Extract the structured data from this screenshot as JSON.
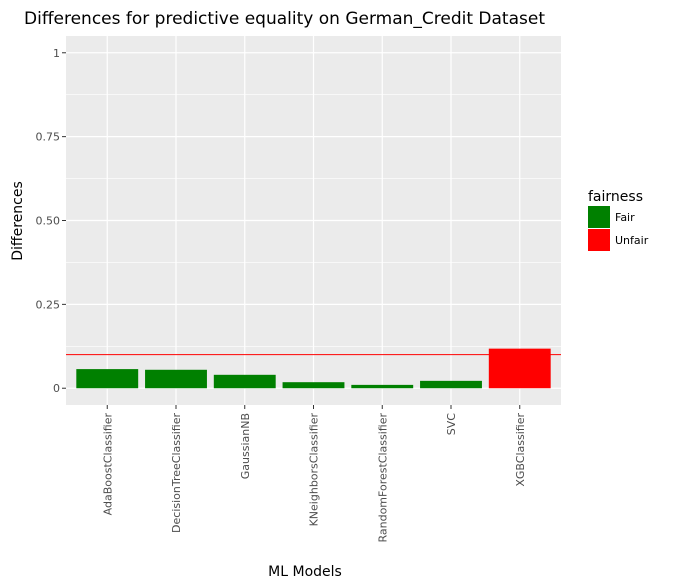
{
  "chart_data": {
    "type": "bar",
    "title": "Differences for predictive equality on German_Credit Dataset",
    "xlabel": "ML Models",
    "ylabel": "Differences",
    "categories": [
      "AdaBoostClassifier",
      "DecisionTreeClassifier",
      "GaussianNB",
      "KNeighborsClassifier",
      "RandomForestClassifier",
      "SVC",
      "XGBClassifier"
    ],
    "values": [
      0.057,
      0.055,
      0.04,
      0.018,
      0.01,
      0.022,
      0.118
    ],
    "fairness": [
      "Fair",
      "Fair",
      "Fair",
      "Fair",
      "Fair",
      "Fair",
      "Unfair"
    ],
    "ylim": [
      -0.05,
      1.05
    ],
    "yticks": [
      0,
      0.25,
      0.5,
      0.75,
      1
    ],
    "ytick_labels": [
      "0",
      "0.25",
      "0.50",
      "0.75",
      "1"
    ],
    "threshold": 0.1,
    "threshold_color": "#ff0000",
    "grid": true,
    "panel_color": "#ebebeb",
    "legend": {
      "title": "fairness",
      "position": "right",
      "entries": [
        {
          "label": "Fair",
          "color": "#008000"
        },
        {
          "label": "Unfair",
          "color": "#ff0000"
        }
      ]
    }
  }
}
